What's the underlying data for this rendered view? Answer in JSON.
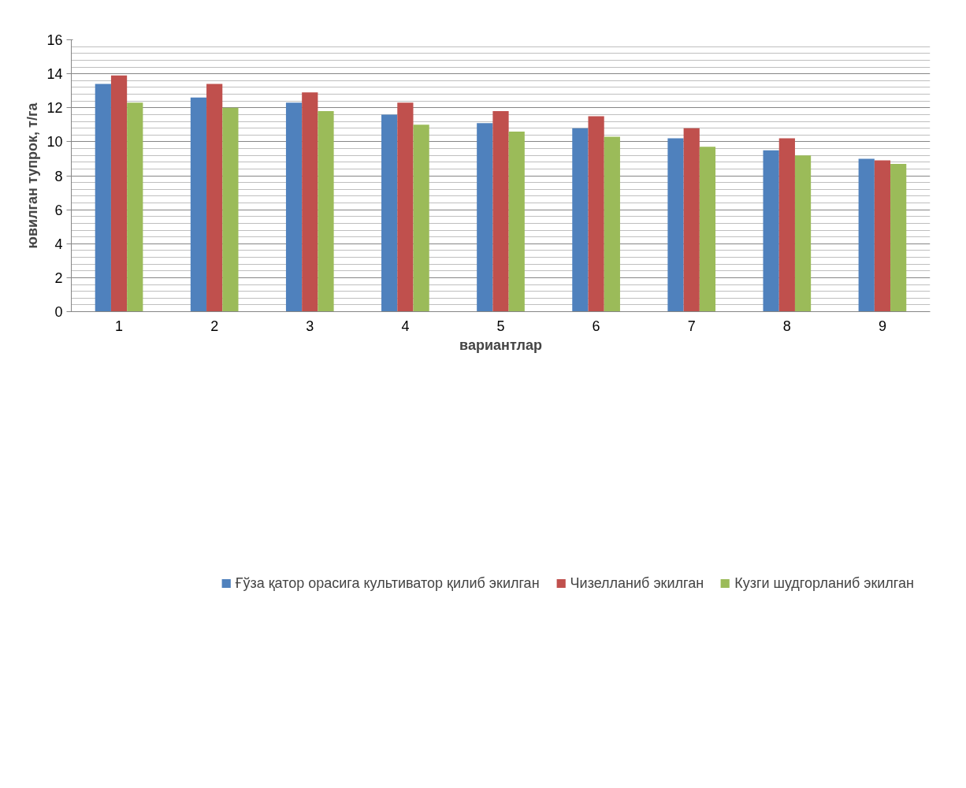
{
  "chart_data": {
    "type": "bar",
    "xlabel": "вариантлар",
    "ylabel": "ювилган тупрок, т/га",
    "categories": [
      "1",
      "2",
      "3",
      "4",
      "5",
      "6",
      "7",
      "8",
      "9"
    ],
    "series": [
      {
        "name": "Ғўза қатор орасига культиватор қилиб экилган",
        "color": "#4f81bd",
        "values": [
          13.4,
          12.6,
          12.3,
          11.6,
          11.1,
          10.8,
          10.2,
          9.5,
          9.0
        ]
      },
      {
        "name": "Чизелланиб экилган",
        "color": "#c0504d",
        "values": [
          13.9,
          13.4,
          12.9,
          12.3,
          11.8,
          11.5,
          10.8,
          10.2,
          8.9
        ]
      },
      {
        "name": "Кузги шудгорланиб экилган",
        "color": "#9bbb59",
        "values": [
          12.3,
          12.0,
          11.8,
          11.0,
          10.6,
          10.3,
          9.7,
          9.2,
          8.7
        ]
      }
    ],
    "ylim": [
      0,
      16
    ],
    "yticks": [
      0,
      2,
      4,
      6,
      8,
      10,
      12,
      14,
      16
    ],
    "grid": "y",
    "legend": "bottom"
  }
}
